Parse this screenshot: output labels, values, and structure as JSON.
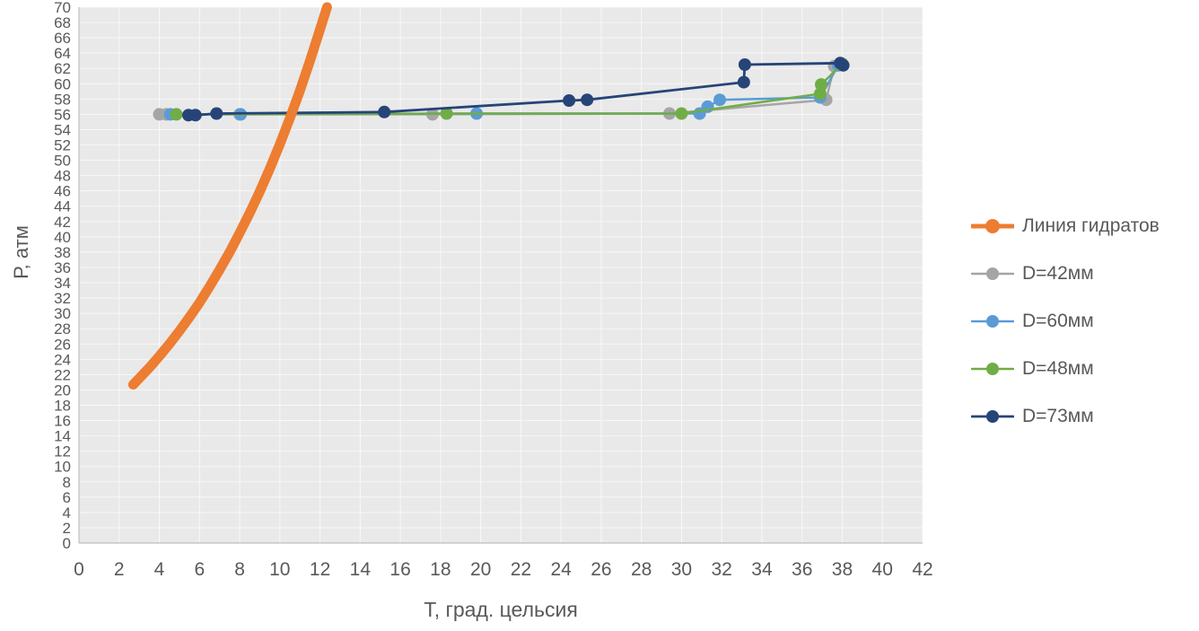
{
  "chart_data": {
    "type": "line",
    "title": "",
    "xlabel": "Т, град. цельсия",
    "ylabel": "Р, атм",
    "xlim": [
      0,
      42
    ],
    "ylim": [
      0,
      70
    ],
    "x_ticks": [
      0,
      2,
      4,
      6,
      8,
      10,
      12,
      14,
      16,
      18,
      20,
      22,
      24,
      26,
      28,
      30,
      32,
      34,
      36,
      38,
      40,
      42
    ],
    "y_ticks": [
      0,
      2,
      4,
      6,
      8,
      10,
      12,
      14,
      16,
      18,
      20,
      22,
      24,
      26,
      28,
      30,
      32,
      34,
      36,
      38,
      40,
      42,
      44,
      46,
      48,
      50,
      52,
      54,
      56,
      58,
      60,
      62,
      64,
      66,
      68,
      70
    ],
    "grid": true,
    "legend_position": "right",
    "plot_bg": "#e9e9e9",
    "grid_color": "#f8f8f8",
    "axis_color": "#bfbfbf",
    "tick_color": "#595959",
    "series": [
      {
        "id": "hydrate-line",
        "name": "Линия гидратов",
        "color": "#ED7D31",
        "width": 11,
        "markers": false,
        "marker_r": 0,
        "z": 5,
        "points": [
          [
            2.7,
            20.7
          ],
          [
            3.0,
            21.5
          ],
          [
            3.5,
            22.9
          ],
          [
            4.0,
            24.4
          ],
          [
            4.5,
            26.0
          ],
          [
            5.0,
            27.7
          ],
          [
            5.5,
            29.5
          ],
          [
            6.0,
            31.4
          ],
          [
            6.5,
            33.5
          ],
          [
            7.0,
            35.7
          ],
          [
            7.5,
            38.0
          ],
          [
            8.0,
            40.5
          ],
          [
            8.5,
            43.1
          ],
          [
            9.0,
            45.9
          ],
          [
            9.5,
            48.9
          ],
          [
            10.0,
            52.1
          ],
          [
            10.5,
            55.5
          ],
          [
            11.0,
            59.1
          ],
          [
            11.5,
            63.0
          ],
          [
            12.0,
            67.1
          ],
          [
            12.35,
            70.0
          ]
        ]
      },
      {
        "id": "d42",
        "name": "D=42мм",
        "color": "#A5A5A5",
        "width": 2.5,
        "markers": true,
        "marker_r": 7,
        "z": 1,
        "points": [
          [
            4.0,
            56.0
          ],
          [
            4.35,
            56.0
          ],
          [
            8.0,
            56.0
          ],
          [
            17.6,
            56.0
          ],
          [
            29.4,
            56.1
          ],
          [
            37.2,
            57.9
          ],
          [
            37.6,
            62.3
          ]
        ]
      },
      {
        "id": "d60",
        "name": "D=60мм",
        "color": "#5B9BD5",
        "width": 2.5,
        "markers": true,
        "marker_r": 7,
        "z": 2,
        "points": [
          [
            4.55,
            56.0
          ],
          [
            8.05,
            56.0
          ],
          [
            19.8,
            56.1
          ],
          [
            30.9,
            56.1
          ],
          [
            31.3,
            57.0
          ],
          [
            31.9,
            57.9
          ],
          [
            36.9,
            58.2
          ],
          [
            37.8,
            62.4
          ]
        ]
      },
      {
        "id": "d48",
        "name": "D=48мм",
        "color": "#70AD47",
        "width": 2.5,
        "markers": true,
        "marker_r": 7,
        "z": 3,
        "points": [
          [
            4.85,
            56.0
          ],
          [
            18.3,
            56.1
          ],
          [
            30.0,
            56.1
          ],
          [
            36.9,
            58.7
          ],
          [
            36.95,
            59.9
          ],
          [
            38.0,
            62.6
          ]
        ]
      },
      {
        "id": "d73",
        "name": "D=73мм",
        "color": "#264478",
        "width": 2.8,
        "markers": true,
        "marker_r": 7,
        "z": 4,
        "points": [
          [
            5.45,
            55.9
          ],
          [
            5.8,
            55.9
          ],
          [
            6.85,
            56.1
          ],
          [
            15.2,
            56.3
          ],
          [
            24.4,
            57.8
          ],
          [
            25.3,
            57.9
          ],
          [
            33.1,
            60.2
          ],
          [
            33.15,
            62.5
          ],
          [
            37.9,
            62.7
          ],
          [
            38.05,
            62.4
          ]
        ]
      }
    ]
  }
}
